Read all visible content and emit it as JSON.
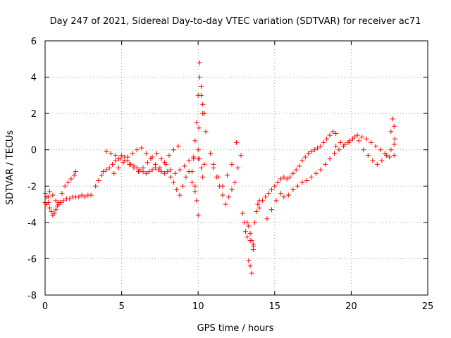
{
  "chart_data": {
    "type": "scatter",
    "title": "Day 247 of 2021, Sidereal Day-to-day VTEC variation (SDTVAR) for receiver ac71",
    "xlabel": "GPS time / hours",
    "ylabel": "SDTVAR / TECUs",
    "xlim": [
      0,
      25
    ],
    "ylim": [
      -8,
      6
    ],
    "xticks": [
      0,
      5,
      10,
      15,
      20,
      25
    ],
    "yticks": [
      -8,
      -6,
      -4,
      -2,
      0,
      2,
      4,
      6
    ],
    "grid": true,
    "marker": "plus",
    "colors": {
      "series": "#ff0000"
    },
    "series": [
      {
        "name": "",
        "x": [
          0.0,
          0.1,
          0.2,
          0.3,
          0.4,
          0.5,
          0.6,
          0.7,
          0.8,
          0.9,
          1.0,
          1.2,
          1.4,
          1.6,
          1.8,
          2.0,
          2.2,
          2.4,
          2.6,
          2.8,
          3.0,
          0.0,
          0.1,
          0.2,
          0.3,
          0.5,
          0.7,
          0.9,
          1.1,
          1.3,
          1.5,
          1.7,
          1.9,
          2.0,
          3.3,
          3.5,
          3.7,
          3.8,
          4.0,
          4.2,
          4.4,
          4.6,
          4.8,
          5.0,
          5.2,
          5.4,
          5.6,
          5.8,
          6.0,
          6.2,
          6.4,
          6.6,
          6.8,
          7.0,
          7.2,
          7.4,
          7.6,
          7.8,
          8.0,
          4.0,
          4.3,
          4.6,
          4.9,
          5.2,
          5.5,
          5.8,
          6.1,
          6.4,
          6.7,
          7.0,
          7.3,
          7.6,
          7.9,
          8.2,
          8.5,
          8.8,
          9.1,
          9.4,
          9.7,
          10.0,
          4.5,
          4.8,
          5.1,
          5.4,
          5.7,
          6.0,
          6.3,
          6.6,
          6.9,
          7.2,
          7.5,
          7.8,
          8.1,
          8.4,
          8.7,
          8.2,
          8.4,
          8.6,
          8.8,
          9.0,
          9.2,
          9.4,
          9.6,
          9.8,
          9.6,
          9.7,
          9.8,
          9.9,
          10.0,
          10.1,
          10.2,
          10.3,
          10.4,
          10.5,
          9.8,
          9.9,
          10.0,
          10.05,
          10.1,
          10.2,
          10.3,
          10.0,
          10.1,
          10.2,
          10.3,
          10.4,
          10.8,
          11.0,
          11.2,
          11.4,
          11.6,
          11.8,
          12.0,
          12.2,
          12.4,
          12.6,
          12.8,
          11.0,
          11.3,
          11.6,
          11.9,
          12.2,
          12.5,
          12.9,
          13.0,
          13.1,
          13.2,
          13.3,
          13.4,
          13.5,
          13.6,
          13.7,
          13.8,
          13.9,
          14.0,
          13.3,
          13.4,
          13.5,
          13.6,
          13.2,
          13.4,
          13.6,
          14.0,
          14.2,
          14.4,
          14.6,
          14.8,
          15.0,
          15.2,
          15.4,
          15.6,
          15.8,
          16.0,
          16.2,
          16.4,
          16.6,
          16.8,
          17.0,
          17.2,
          17.4,
          17.6,
          17.8,
          18.0,
          18.2,
          18.4,
          18.6,
          18.8,
          19.0,
          14.5,
          14.8,
          15.1,
          15.4,
          15.6,
          15.9,
          16.2,
          16.5,
          16.8,
          17.1,
          17.4,
          17.7,
          18.0,
          18.3,
          18.6,
          18.9,
          19.2,
          19.5,
          19.8,
          20.1,
          20.4,
          20.7,
          21.0,
          21.3,
          21.6,
          21.9,
          22.2,
          22.5,
          22.8,
          19.0,
          19.3,
          19.6,
          19.9,
          20.2,
          20.5,
          20.8,
          21.1,
          21.4,
          21.7,
          22.0,
          22.3,
          22.6,
          22.8,
          22.6,
          22.7,
          22.8,
          22.85
        ],
        "y": [
          -2.4,
          -2.6,
          -2.9,
          -3.2,
          -3.4,
          -3.6,
          -3.5,
          -3.3,
          -3.1,
          -3.0,
          -2.9,
          -2.8,
          -2.7,
          -2.7,
          -2.6,
          -2.6,
          -2.6,
          -2.5,
          -2.6,
          -2.5,
          -2.5,
          -2.9,
          -3.0,
          -2.6,
          -2.3,
          -2.5,
          -2.8,
          -2.9,
          -2.4,
          -2.0,
          -1.8,
          -1.6,
          -1.4,
          -1.2,
          -2.0,
          -1.7,
          -1.4,
          -1.2,
          -1.1,
          -1.0,
          -0.8,
          -0.6,
          -0.5,
          -0.3,
          -0.4,
          -0.6,
          -0.8,
          -0.9,
          -1.0,
          -1.1,
          -1.2,
          -1.3,
          -1.2,
          -1.1,
          -1.0,
          -1.1,
          -1.2,
          -1.3,
          -1.2,
          -0.1,
          -0.2,
          -0.3,
          -0.5,
          -0.6,
          -0.8,
          -1.0,
          -1.2,
          -1.0,
          -0.7,
          -0.4,
          -0.2,
          -0.5,
          -0.8,
          -1.1,
          -1.3,
          -1.1,
          -0.9,
          -0.6,
          -0.4,
          -0.5,
          -1.3,
          -1.0,
          -0.7,
          -0.4,
          -0.2,
          0.0,
          0.1,
          -0.2,
          -0.5,
          -0.8,
          -1.0,
          -0.7,
          -0.3,
          0.0,
          0.2,
          -1.5,
          -1.8,
          -2.2,
          -2.5,
          -2.0,
          -1.5,
          -1.2,
          -1.8,
          -2.3,
          -1.2,
          -0.5,
          0.5,
          1.5,
          3.0,
          4.0,
          3.5,
          2.5,
          2.0,
          1.0,
          -2.0,
          -2.8,
          -3.6,
          1.2,
          4.8,
          3.0,
          2.0,
          0.0,
          -0.5,
          -1.0,
          -1.5,
          -0.8,
          -0.2,
          -0.8,
          -1.5,
          -2.0,
          -2.5,
          -3.0,
          -2.6,
          -2.2,
          -1.8,
          -1.0,
          -0.3,
          -1.0,
          -1.5,
          -2.0,
          -1.4,
          -0.8,
          0.4,
          -3.5,
          -4.0,
          -4.5,
          -4.8,
          -4.2,
          -4.6,
          -5.0,
          -5.2,
          -4.0,
          -3.4,
          -3.0,
          -2.8,
          -6.1,
          -6.4,
          -6.8,
          -5.5,
          -4.0,
          -5.0,
          -5.3,
          -3.2,
          -2.8,
          -2.6,
          -2.4,
          -2.2,
          -2.0,
          -1.8,
          -1.6,
          -1.5,
          -1.6,
          -1.5,
          -1.3,
          -1.1,
          -0.9,
          -0.6,
          -0.4,
          -0.2,
          -0.1,
          0.0,
          0.1,
          0.2,
          0.4,
          0.6,
          0.8,
          1.0,
          0.9,
          -3.8,
          -3.3,
          -2.8,
          -2.4,
          -2.6,
          -2.5,
          -2.2,
          -2.0,
          -1.8,
          -1.7,
          -1.5,
          -1.3,
          -1.1,
          -0.8,
          -0.5,
          -0.2,
          0.0,
          0.2,
          0.4,
          0.6,
          0.8,
          0.7,
          0.6,
          0.4,
          0.2,
          0.0,
          -0.2,
          -0.4,
          -0.3,
          0.2,
          0.4,
          0.3,
          0.5,
          0.7,
          0.5,
          0.0,
          -0.3,
          -0.6,
          -0.8,
          -0.6,
          -0.3,
          0.0,
          0.3,
          1.0,
          1.7,
          1.3,
          0.6
        ]
      }
    ]
  }
}
